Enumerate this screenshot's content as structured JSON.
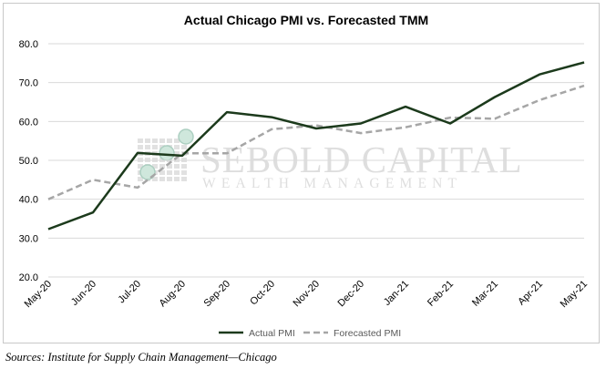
{
  "chart_data": {
    "type": "line",
    "title": "Actual Chicago PMI vs. Forecasted TMM",
    "categories": [
      "May-20",
      "Jun-20",
      "Jul-20",
      "Aug-20",
      "Sep-20",
      "Oct-20",
      "Nov-20",
      "Dec-20",
      "Jan-21",
      "Feb-21",
      "Mar-21",
      "Apr-21",
      "May-21"
    ],
    "series": [
      {
        "name": "Actual PMI",
        "color": "#1c3a1c",
        "style": "solid",
        "values": [
          32.3,
          36.6,
          51.9,
          51.2,
          62.4,
          61.1,
          58.2,
          59.5,
          63.8,
          59.5,
          66.3,
          72.1,
          75.2
        ]
      },
      {
        "name": "Forecasted PMI",
        "color": "#a6a6a6",
        "style": "dashed",
        "values": [
          40.0,
          45.0,
          43.0,
          51.8,
          51.8,
          58.0,
          59.0,
          57.0,
          58.5,
          61.0,
          60.7,
          65.5,
          69.2
        ]
      }
    ],
    "yticks": [
      "20.0",
      "30.0",
      "40.0",
      "50.0",
      "60.0",
      "70.0",
      "80.0"
    ],
    "ylim": [
      20,
      80
    ],
    "grid": true,
    "legend_position": "bottom"
  },
  "watermark": {
    "line1": "SEBOLD CAPITAL",
    "line2": "WEALTH MANAGEMENT"
  },
  "source": "Sources: Institute for Supply Chain Management—Chicago"
}
